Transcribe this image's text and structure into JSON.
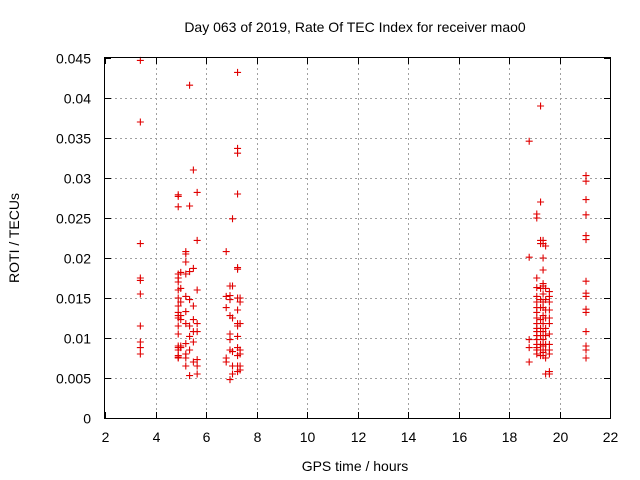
{
  "chart_data": {
    "type": "scatter",
    "title": "Day 063 of 2019, Rate Of TEC Index for receiver mao0",
    "xlabel": "GPS time / hours",
    "ylabel": "ROTI / TECUs",
    "xlim": [
      2,
      22
    ],
    "ylim": [
      0,
      0.045
    ],
    "xticks": [
      2,
      4,
      6,
      8,
      10,
      12,
      14,
      16,
      18,
      20,
      22
    ],
    "xtick_labels": [
      "2",
      "4",
      "6",
      "8",
      "10",
      "12",
      "14",
      "16",
      "18",
      "20",
      "22"
    ],
    "yticks": [
      0,
      0.005,
      0.01,
      0.015,
      0.02,
      0.025,
      0.03,
      0.035,
      0.04,
      0.045
    ],
    "ytick_labels": [
      "0",
      "0.005",
      "0.01",
      "0.015",
      "0.02",
      "0.025",
      "0.03",
      "0.035",
      "0.04",
      "0.045"
    ],
    "grid": true,
    "marker": "+",
    "color": "#e00000",
    "series": [
      {
        "name": "mao0",
        "points": [
          [
            3.4,
            0.0447
          ],
          [
            3.4,
            0.037
          ],
          [
            3.4,
            0.0218
          ],
          [
            3.4,
            0.0175
          ],
          [
            3.4,
            0.0172
          ],
          [
            3.4,
            0.0155
          ],
          [
            3.4,
            0.0115
          ],
          [
            3.4,
            0.0095
          ],
          [
            3.4,
            0.0088
          ],
          [
            3.4,
            0.008
          ],
          [
            4.9,
            0.0279
          ],
          [
            4.9,
            0.0277
          ],
          [
            4.9,
            0.0264
          ],
          [
            4.9,
            0.018
          ],
          [
            4.9,
            0.0175
          ],
          [
            4.9,
            0.017
          ],
          [
            4.9,
            0.016
          ],
          [
            4.9,
            0.015
          ],
          [
            4.9,
            0.014
          ],
          [
            4.9,
            0.0132
          ],
          [
            4.9,
            0.0128
          ],
          [
            4.9,
            0.0125
          ],
          [
            4.9,
            0.0115
          ],
          [
            4.9,
            0.0105
          ],
          [
            4.9,
            0.009
          ],
          [
            4.9,
            0.0088
          ],
          [
            4.9,
            0.0085
          ],
          [
            4.9,
            0.0078
          ],
          [
            4.9,
            0.0076
          ],
          [
            4.9,
            0.0075
          ],
          [
            5.0,
            0.0182
          ],
          [
            5.0,
            0.0162
          ],
          [
            5.0,
            0.0145
          ],
          [
            5.0,
            0.0128
          ],
          [
            5.0,
            0.0123
          ],
          [
            5.0,
            0.009
          ],
          [
            5.0,
            0.0088
          ],
          [
            5.2,
            0.0208
          ],
          [
            5.2,
            0.0205
          ],
          [
            5.2,
            0.0195
          ],
          [
            5.2,
            0.018
          ],
          [
            5.2,
            0.0152
          ],
          [
            5.2,
            0.0133
          ],
          [
            5.2,
            0.0118
          ],
          [
            5.2,
            0.0093
          ],
          [
            5.2,
            0.008
          ],
          [
            5.2,
            0.0075
          ],
          [
            5.2,
            0.0065
          ],
          [
            5.35,
            0.0416
          ],
          [
            5.35,
            0.0265
          ],
          [
            5.35,
            0.0183
          ],
          [
            5.35,
            0.0148
          ],
          [
            5.35,
            0.0115
          ],
          [
            5.35,
            0.0102
          ],
          [
            5.35,
            0.0085
          ],
          [
            5.35,
            0.0053
          ],
          [
            5.5,
            0.031
          ],
          [
            5.5,
            0.0187
          ],
          [
            5.5,
            0.014
          ],
          [
            5.5,
            0.0123
          ],
          [
            5.5,
            0.0108
          ],
          [
            5.5,
            0.0095
          ],
          [
            5.5,
            0.007
          ],
          [
            5.65,
            0.0282
          ],
          [
            5.65,
            0.0222
          ],
          [
            5.65,
            0.016
          ],
          [
            5.65,
            0.0118
          ],
          [
            5.65,
            0.0108
          ],
          [
            5.65,
            0.0073
          ],
          [
            5.65,
            0.0065
          ],
          [
            5.65,
            0.0055
          ],
          [
            6.8,
            0.0208
          ],
          [
            6.8,
            0.0152
          ],
          [
            6.8,
            0.0138
          ],
          [
            6.8,
            0.0075
          ],
          [
            6.8,
            0.007
          ],
          [
            6.95,
            0.0165
          ],
          [
            6.95,
            0.0153
          ],
          [
            6.95,
            0.0148
          ],
          [
            6.95,
            0.0128
          ],
          [
            6.95,
            0.0105
          ],
          [
            6.95,
            0.0098
          ],
          [
            6.95,
            0.0085
          ],
          [
            6.95,
            0.0048
          ],
          [
            7.05,
            0.0249
          ],
          [
            7.05,
            0.0165
          ],
          [
            7.05,
            0.0125
          ],
          [
            7.05,
            0.0083
          ],
          [
            7.05,
            0.0065
          ],
          [
            7.05,
            0.0055
          ],
          [
            7.25,
            0.0432
          ],
          [
            7.25,
            0.0337
          ],
          [
            7.25,
            0.0331
          ],
          [
            7.25,
            0.028
          ],
          [
            7.25,
            0.0188
          ],
          [
            7.25,
            0.0186
          ],
          [
            7.25,
            0.015
          ],
          [
            7.25,
            0.0135
          ],
          [
            7.25,
            0.0118
          ],
          [
            7.25,
            0.0115
          ],
          [
            7.25,
            0.0102
          ],
          [
            7.25,
            0.0088
          ],
          [
            7.25,
            0.0078
          ],
          [
            7.25,
            0.0065
          ],
          [
            7.25,
            0.0058
          ],
          [
            7.35,
            0.015
          ],
          [
            7.35,
            0.0145
          ],
          [
            7.35,
            0.0118
          ],
          [
            7.35,
            0.0085
          ],
          [
            7.35,
            0.008
          ],
          [
            7.35,
            0.0065
          ],
          [
            7.35,
            0.006
          ],
          [
            18.8,
            0.0346
          ],
          [
            18.8,
            0.0201
          ],
          [
            18.8,
            0.0098
          ],
          [
            18.8,
            0.0088
          ],
          [
            18.8,
            0.007
          ],
          [
            19.1,
            0.0255
          ],
          [
            19.1,
            0.025
          ],
          [
            19.1,
            0.0175
          ],
          [
            19.1,
            0.0163
          ],
          [
            19.1,
            0.0152
          ],
          [
            19.1,
            0.0145
          ],
          [
            19.1,
            0.0138
          ],
          [
            19.1,
            0.0132
          ],
          [
            19.1,
            0.0125
          ],
          [
            19.1,
            0.0118
          ],
          [
            19.1,
            0.0112
          ],
          [
            19.1,
            0.0108
          ],
          [
            19.1,
            0.0103
          ],
          [
            19.1,
            0.0098
          ],
          [
            19.1,
            0.0092
          ],
          [
            19.1,
            0.0088
          ],
          [
            19.1,
            0.0085
          ],
          [
            19.1,
            0.008
          ],
          [
            19.25,
            0.039
          ],
          [
            19.25,
            0.027
          ],
          [
            19.25,
            0.0222
          ],
          [
            19.25,
            0.0218
          ],
          [
            19.25,
            0.0162
          ],
          [
            19.25,
            0.0148
          ],
          [
            19.25,
            0.0138
          ],
          [
            19.25,
            0.0123
          ],
          [
            19.25,
            0.0112
          ],
          [
            19.25,
            0.0103
          ],
          [
            19.25,
            0.0092
          ],
          [
            19.25,
            0.0085
          ],
          [
            19.25,
            0.0078
          ],
          [
            19.35,
            0.0222
          ],
          [
            19.35,
            0.0218
          ],
          [
            19.35,
            0.02
          ],
          [
            19.35,
            0.0185
          ],
          [
            19.35,
            0.0168
          ],
          [
            19.35,
            0.0165
          ],
          [
            19.35,
            0.0155
          ],
          [
            19.35,
            0.0145
          ],
          [
            19.35,
            0.0138
          ],
          [
            19.35,
            0.0128
          ],
          [
            19.35,
            0.0118
          ],
          [
            19.35,
            0.0108
          ],
          [
            19.35,
            0.0098
          ],
          [
            19.35,
            0.009
          ],
          [
            19.35,
            0.0082
          ],
          [
            19.35,
            0.0078
          ],
          [
            19.45,
            0.0215
          ],
          [
            19.45,
            0.0162
          ],
          [
            19.45,
            0.0148
          ],
          [
            19.45,
            0.0135
          ],
          [
            19.45,
            0.0125
          ],
          [
            19.45,
            0.0112
          ],
          [
            19.45,
            0.0103
          ],
          [
            19.45,
            0.0092
          ],
          [
            19.45,
            0.0085
          ],
          [
            19.45,
            0.0075
          ],
          [
            19.45,
            0.0055
          ],
          [
            19.6,
            0.0158
          ],
          [
            19.6,
            0.0152
          ],
          [
            19.6,
            0.0145
          ],
          [
            19.6,
            0.0135
          ],
          [
            19.6,
            0.0125
          ],
          [
            19.6,
            0.0118
          ],
          [
            19.6,
            0.0105
          ],
          [
            19.6,
            0.0092
          ],
          [
            19.6,
            0.0085
          ],
          [
            19.6,
            0.008
          ],
          [
            19.6,
            0.0058
          ],
          [
            19.6,
            0.0055
          ],
          [
            21.05,
            0.0303
          ],
          [
            21.05,
            0.0296
          ],
          [
            21.05,
            0.0273
          ],
          [
            21.05,
            0.0254
          ],
          [
            21.05,
            0.0228
          ],
          [
            21.05,
            0.0223
          ],
          [
            21.05,
            0.0171
          ],
          [
            21.05,
            0.0156
          ],
          [
            21.05,
            0.0152
          ],
          [
            21.05,
            0.0136
          ],
          [
            21.05,
            0.0132
          ],
          [
            21.05,
            0.0108
          ],
          [
            21.05,
            0.009
          ],
          [
            21.05,
            0.0085
          ],
          [
            21.05,
            0.0075
          ]
        ]
      }
    ]
  }
}
